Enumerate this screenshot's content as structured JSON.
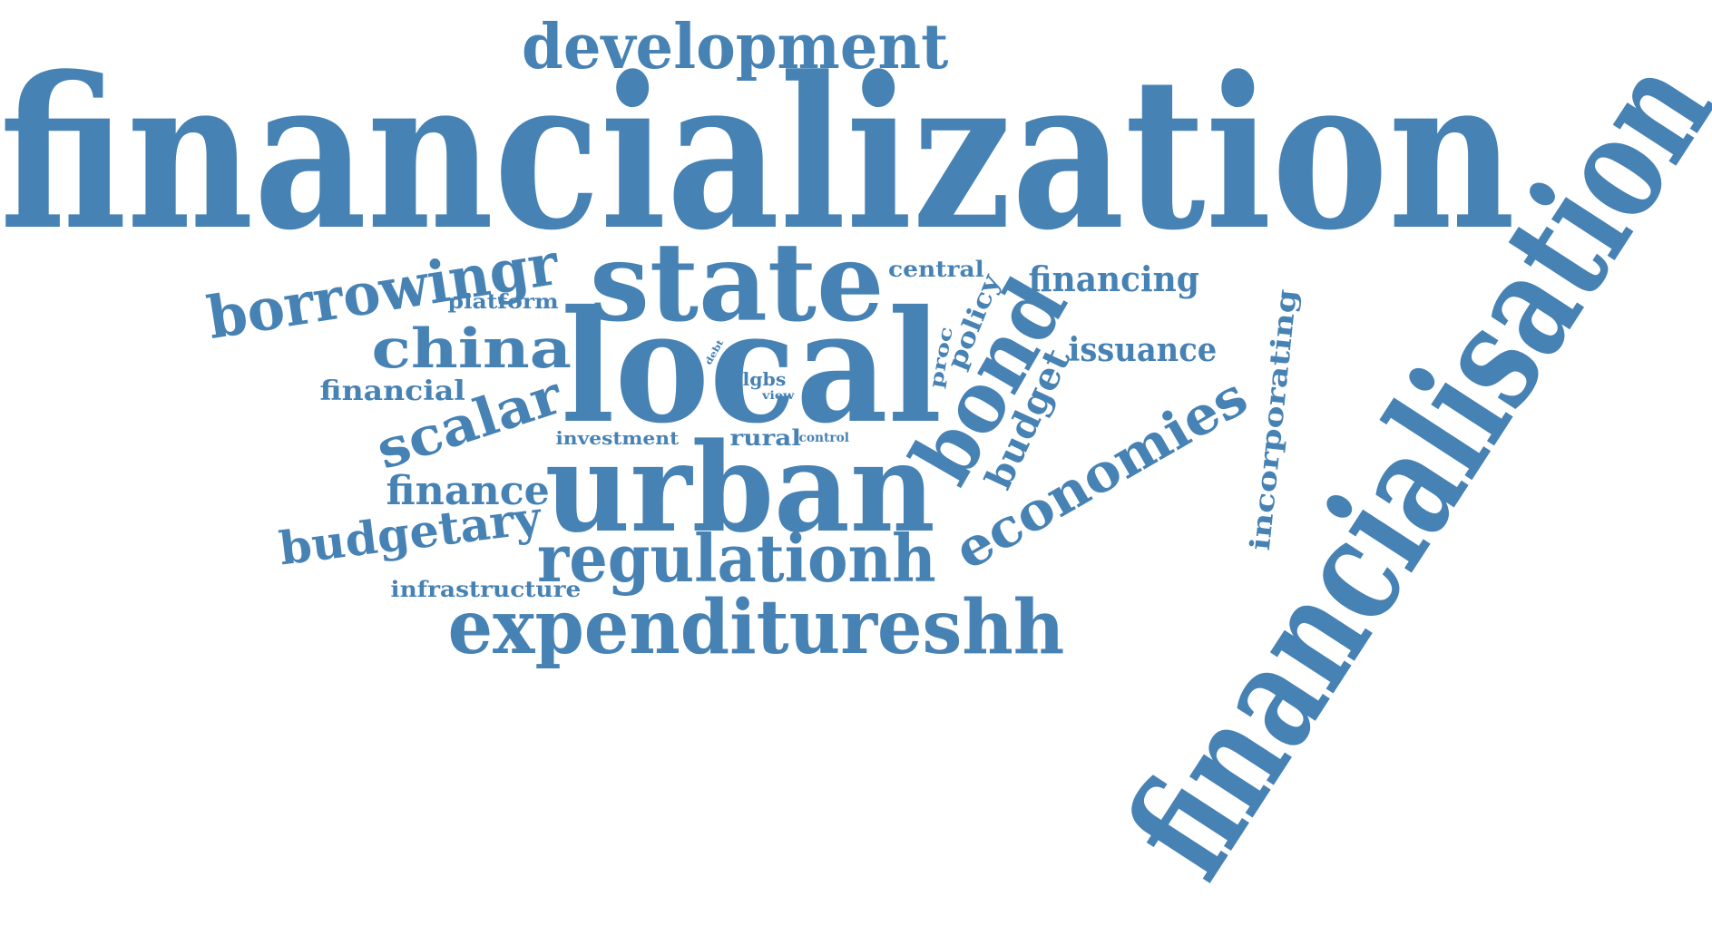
{
  "color": "#4782b4",
  "words": [
    {
      "text": "financialization",
      "rotation": 0
    },
    {
      "text": "financialisation",
      "rotation": -57
    },
    {
      "text": "local",
      "rotation": 0
    },
    {
      "text": "urban",
      "rotation": 0
    },
    {
      "text": "state",
      "rotation": 0
    },
    {
      "text": "development",
      "rotation": 0
    },
    {
      "text": "expenditureshh",
      "rotation": 0
    },
    {
      "text": "regulationh",
      "rotation": 0
    },
    {
      "text": "bond",
      "rotation": -60
    },
    {
      "text": "economies",
      "rotation": -30
    },
    {
      "text": "borrowingr",
      "rotation": -9
    },
    {
      "text": "china",
      "rotation": 0
    },
    {
      "text": "scalar",
      "rotation": -18
    },
    {
      "text": "budgetary",
      "rotation": -7
    },
    {
      "text": "finance",
      "rotation": 0
    },
    {
      "text": "budget",
      "rotation": -65
    },
    {
      "text": "financing",
      "rotation": 0
    },
    {
      "text": "issuance",
      "rotation": 0
    },
    {
      "text": "incorporating",
      "rotation": -84
    },
    {
      "text": "central",
      "rotation": 0
    },
    {
      "text": "policy",
      "rotation": -68
    },
    {
      "text": "financial",
      "rotation": 0
    },
    {
      "text": "platform",
      "rotation": 0
    },
    {
      "text": "proc",
      "rotation": -80
    },
    {
      "text": "investment",
      "rotation": 0
    },
    {
      "text": "rural",
      "rotation": 0
    },
    {
      "text": "infrastructure",
      "rotation": 0
    },
    {
      "text": "lgbs",
      "rotation": 0
    },
    {
      "text": "view",
      "rotation": 0
    },
    {
      "text": "control",
      "rotation": 0
    },
    {
      "text": "debt",
      "rotation": -60
    }
  ]
}
